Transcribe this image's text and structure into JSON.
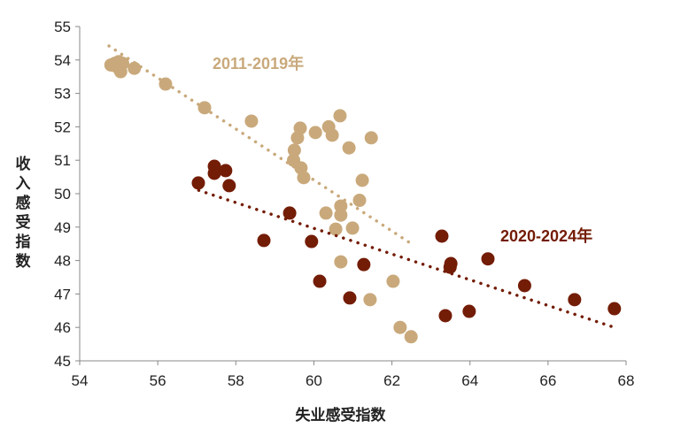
{
  "chart_data": {
    "type": "scatter",
    "xlabel": "失业感受指数",
    "ylabel": "收入感受指数",
    "xlim": [
      54,
      68
    ],
    "ylim": [
      45,
      55
    ],
    "xticks": [
      54,
      56,
      58,
      60,
      62,
      64,
      66,
      68
    ],
    "yticks": [
      45,
      46,
      47,
      48,
      49,
      50,
      51,
      52,
      53,
      54,
      55
    ],
    "grid": false,
    "legend": "none",
    "series": [
      {
        "name": "2011-2019年",
        "color": "#C9A97B",
        "points": [
          [
            54.8,
            53.85
          ],
          [
            54.9,
            53.9
          ],
          [
            55.0,
            53.95
          ],
          [
            55.05,
            53.65
          ],
          [
            54.95,
            53.8
          ],
          [
            55.1,
            53.9
          ],
          [
            55.4,
            53.75
          ],
          [
            56.2,
            53.28
          ],
          [
            57.2,
            52.57
          ],
          [
            58.4,
            52.17
          ],
          [
            59.65,
            51.96
          ],
          [
            59.58,
            51.67
          ],
          [
            59.5,
            51.3
          ],
          [
            59.48,
            51.0
          ],
          [
            59.67,
            50.77
          ],
          [
            59.74,
            50.48
          ],
          [
            60.04,
            51.83
          ],
          [
            60.38,
            52.0
          ],
          [
            60.47,
            51.75
          ],
          [
            60.67,
            52.33
          ],
          [
            60.9,
            51.37
          ],
          [
            61.47,
            51.67
          ],
          [
            61.24,
            50.4
          ],
          [
            60.69,
            49.63
          ],
          [
            60.69,
            49.36
          ],
          [
            60.31,
            49.42
          ],
          [
            61.17,
            49.8
          ],
          [
            60.56,
            48.94
          ],
          [
            60.99,
            48.97
          ],
          [
            60.69,
            47.96
          ],
          [
            62.03,
            47.38
          ],
          [
            61.44,
            46.83
          ],
          [
            62.21,
            46.0
          ],
          [
            62.49,
            45.72
          ]
        ],
        "trendline": [
          [
            54.75,
            54.42
          ],
          [
            62.5,
            48.5
          ]
        ]
      },
      {
        "name": "2020-2024年",
        "color": "#731C06",
        "points": [
          [
            57.45,
            50.82
          ],
          [
            57.45,
            50.61
          ],
          [
            57.74,
            50.69
          ],
          [
            57.04,
            50.32
          ],
          [
            57.83,
            50.24
          ],
          [
            59.38,
            49.42
          ],
          [
            58.72,
            48.6
          ],
          [
            59.94,
            48.57
          ],
          [
            61.28,
            47.88
          ],
          [
            60.15,
            47.38
          ],
          [
            60.92,
            46.88
          ],
          [
            63.28,
            48.73
          ],
          [
            63.51,
            47.91
          ],
          [
            63.49,
            47.8
          ],
          [
            64.46,
            48.05
          ],
          [
            63.37,
            46.35
          ],
          [
            63.98,
            46.48
          ],
          [
            65.4,
            47.25
          ],
          [
            66.68,
            46.83
          ],
          [
            67.7,
            46.56
          ]
        ],
        "trendline": [
          [
            57.05,
            50.1
          ],
          [
            67.7,
            46.0
          ]
        ]
      }
    ]
  }
}
